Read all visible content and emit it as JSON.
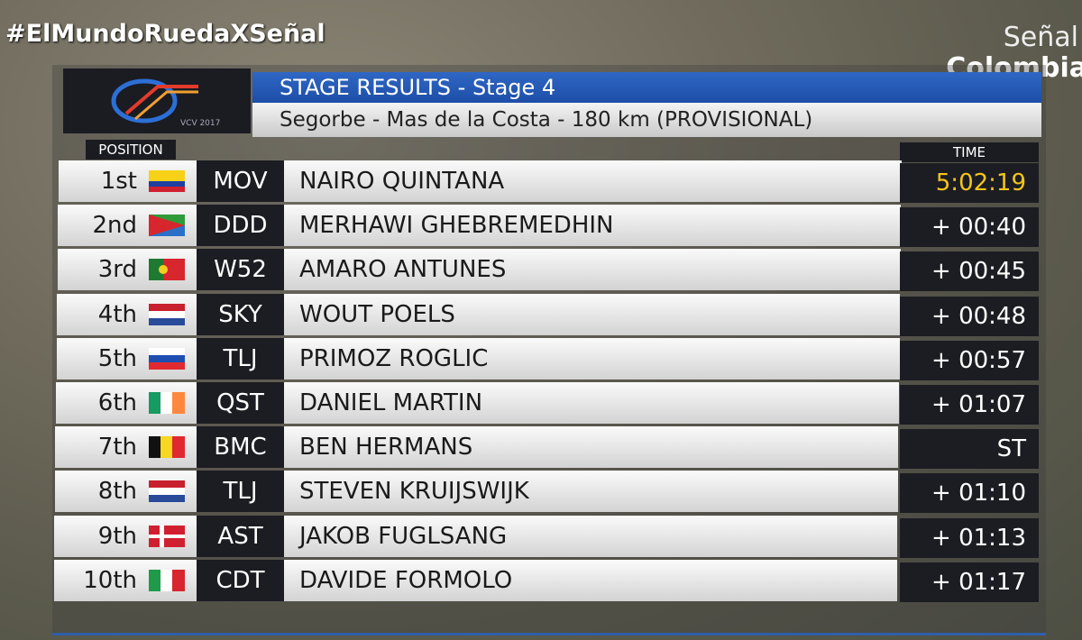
{
  "overlay": {
    "hashtag": "#ElMundoRuedaXSeñal",
    "channel_top": "Señal",
    "channel_bottom": "Colombia"
  },
  "logo": {
    "caption": "VCV 2017"
  },
  "header": {
    "title": "STAGE RESULTS - Stage 4",
    "subtitle": "Segorbe - Mas de la Costa - 180 km (PROVISIONAL)"
  },
  "table": {
    "columns": {
      "position": "POSITION",
      "time": "TIME"
    },
    "rows": [
      [
        "1st",
        "MOV",
        "NAIRO QUINTANA",
        "5:02:19"
      ],
      [
        "2nd",
        "DDD",
        "MERHAWI GHEBREMEDHIN",
        "+ 00:40"
      ],
      [
        "3rd",
        "W52",
        "AMARO ANTUNES",
        "+ 00:45"
      ],
      [
        "4th",
        "SKY",
        "WOUT POELS",
        "+ 00:48"
      ],
      [
        "5th",
        "TLJ",
        "PRIMOZ ROGLIC",
        "+ 00:57"
      ],
      [
        "6th",
        "QST",
        "DANIEL MARTIN",
        "+ 01:07"
      ],
      [
        "7th",
        "BMC",
        "BEN HERMANS",
        "ST"
      ],
      [
        "8th",
        "TLJ",
        "STEVEN KRUIJSWIJK",
        "+ 01:10"
      ],
      [
        "9th",
        "AST",
        "JAKOB FUGLSANG",
        "+ 01:13"
      ],
      [
        "10th",
        "CDT",
        "DAVIDE FORMOLO",
        "+ 01:17"
      ]
    ]
  }
}
